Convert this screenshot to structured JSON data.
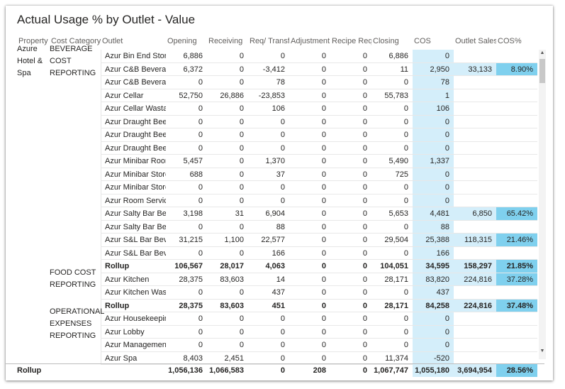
{
  "title": "Actual Usage % by Outlet - Value",
  "headers": [
    "Property",
    "Cost Category",
    "Outlet",
    "Opening",
    "Receiving",
    "Req/ Transf",
    "Adjustment",
    "Recipe Req/",
    "Closing",
    "COS",
    "Outlet Sales",
    "COS%"
  ],
  "property": "Azure Hotel & Spa",
  "groups": [
    {
      "label": "BEVERAGE COST REPORTING"
    },
    {
      "label": "FOOD COST REPORTING"
    },
    {
      "label": "OPERATIONAL EXPENSES REPORTING"
    }
  ],
  "rows": [
    {
      "outlet": "Azur Bin End Store",
      "opening": "6,886",
      "receiving": "0",
      "req": "0",
      "adj": "0",
      "recipe": "0",
      "closing": "6,886",
      "cos": "0",
      "sales": "",
      "pct": ""
    },
    {
      "outlet": "Azur C&B Beverage",
      "opening": "6,372",
      "receiving": "0",
      "req": "-3,412",
      "adj": "0",
      "recipe": "0",
      "closing": "11",
      "cos": "2,950",
      "sales": "33,133",
      "pct": "8.90%"
    },
    {
      "outlet": "Azur C&B Beverage",
      "opening": "0",
      "receiving": "0",
      "req": "78",
      "adj": "0",
      "recipe": "0",
      "closing": "0",
      "cos": "78",
      "sales": "",
      "pct": ""
    },
    {
      "outlet": "Azur Cellar",
      "opening": "52,750",
      "receiving": "26,886",
      "req": "-23,853",
      "adj": "0",
      "recipe": "0",
      "closing": "55,783",
      "cos": "1",
      "sales": "",
      "pct": ""
    },
    {
      "outlet": "Azur Cellar Wastage",
      "opening": "0",
      "receiving": "0",
      "req": "106",
      "adj": "0",
      "recipe": "0",
      "closing": "0",
      "cos": "106",
      "sales": "",
      "pct": ""
    },
    {
      "outlet": "Azur Draught Beer",
      "opening": "0",
      "receiving": "0",
      "req": "0",
      "adj": "0",
      "recipe": "0",
      "closing": "0",
      "cos": "0",
      "sales": "",
      "pct": ""
    },
    {
      "outlet": "Azur Draught Beer",
      "opening": "0",
      "receiving": "0",
      "req": "0",
      "adj": "0",
      "recipe": "0",
      "closing": "0",
      "cos": "0",
      "sales": "",
      "pct": ""
    },
    {
      "outlet": "Azur Draught Beer",
      "opening": "0",
      "receiving": "0",
      "req": "0",
      "adj": "0",
      "recipe": "0",
      "closing": "0",
      "cos": "0",
      "sales": "",
      "pct": ""
    },
    {
      "outlet": "Azur Minibar Room",
      "opening": "5,457",
      "receiving": "0",
      "req": "1,370",
      "adj": "0",
      "recipe": "0",
      "closing": "5,490",
      "cos": "1,337",
      "sales": "",
      "pct": ""
    },
    {
      "outlet": "Azur Minibar Stores",
      "opening": "688",
      "receiving": "0",
      "req": "37",
      "adj": "0",
      "recipe": "0",
      "closing": "725",
      "cos": "0",
      "sales": "",
      "pct": ""
    },
    {
      "outlet": "Azur Minibar Stores",
      "opening": "0",
      "receiving": "0",
      "req": "0",
      "adj": "0",
      "recipe": "0",
      "closing": "0",
      "cos": "0",
      "sales": "",
      "pct": ""
    },
    {
      "outlet": "Azur Room Service",
      "opening": "0",
      "receiving": "0",
      "req": "0",
      "adj": "0",
      "recipe": "0",
      "closing": "0",
      "cos": "0",
      "sales": "",
      "pct": ""
    },
    {
      "outlet": "Azur Salty Bar Beve",
      "opening": "3,198",
      "receiving": "31",
      "req": "6,904",
      "adj": "0",
      "recipe": "0",
      "closing": "5,653",
      "cos": "4,481",
      "sales": "6,850",
      "pct": "65.42%"
    },
    {
      "outlet": "Azur Salty Bar Beve",
      "opening": "0",
      "receiving": "0",
      "req": "88",
      "adj": "0",
      "recipe": "0",
      "closing": "0",
      "cos": "88",
      "sales": "",
      "pct": ""
    },
    {
      "outlet": "Azur S&L Bar Bever",
      "opening": "31,215",
      "receiving": "1,100",
      "req": "22,577",
      "adj": "0",
      "recipe": "0",
      "closing": "29,504",
      "cos": "25,388",
      "sales": "118,315",
      "pct": "21.46%"
    },
    {
      "outlet": "Azur S&L Bar Bever",
      "opening": "0",
      "receiving": "0",
      "req": "166",
      "adj": "0",
      "recipe": "0",
      "closing": "0",
      "cos": "166",
      "sales": "",
      "pct": ""
    },
    {
      "outlet": "Rollup",
      "rollup": true,
      "opening": "106,567",
      "receiving": "28,017",
      "req": "4,063",
      "adj": "0",
      "recipe": "0",
      "closing": "104,051",
      "cos": "34,595",
      "sales": "158,297",
      "pct": "21.85%"
    },
    {
      "outlet": "Azur Kitchen",
      "opening": "28,375",
      "receiving": "83,603",
      "req": "14",
      "adj": "0",
      "recipe": "0",
      "closing": "28,171",
      "cos": "83,820",
      "sales": "224,816",
      "pct": "37.28%"
    },
    {
      "outlet": "Azur Kitchen Wasta",
      "opening": "0",
      "receiving": "0",
      "req": "437",
      "adj": "0",
      "recipe": "0",
      "closing": "0",
      "cos": "437",
      "sales": "",
      "pct": ""
    },
    {
      "outlet": "Rollup",
      "rollup": true,
      "opening": "28,375",
      "receiving": "83,603",
      "req": "451",
      "adj": "0",
      "recipe": "0",
      "closing": "28,171",
      "cos": "84,258",
      "sales": "224,816",
      "pct": "37.48%"
    },
    {
      "outlet": "Azur Housekeeping",
      "opening": "0",
      "receiving": "0",
      "req": "0",
      "adj": "0",
      "recipe": "0",
      "closing": "0",
      "cos": "0",
      "sales": "",
      "pct": ""
    },
    {
      "outlet": "Azur Lobby",
      "opening": "0",
      "receiving": "0",
      "req": "0",
      "adj": "0",
      "recipe": "0",
      "closing": "0",
      "cos": "0",
      "sales": "",
      "pct": ""
    },
    {
      "outlet": "Azur Management",
      "opening": "0",
      "receiving": "0",
      "req": "0",
      "adj": "0",
      "recipe": "0",
      "closing": "0",
      "cos": "0",
      "sales": "",
      "pct": ""
    },
    {
      "outlet": "Azur Spa",
      "opening": "8,403",
      "receiving": "2,451",
      "req": "0",
      "adj": "0",
      "recipe": "0",
      "closing": "11,374",
      "cos": "-520",
      "sales": "",
      "pct": ""
    }
  ],
  "total": {
    "label": "Rollup",
    "opening": "1,056,136",
    "receiving": "1,066,583",
    "req": "0",
    "adj": "208",
    "recipe": "0",
    "closing": "1,067,747",
    "cos": "1,055,180",
    "sales": "3,694,954",
    "pct": "28.56%"
  },
  "colors": {
    "cos_bg": "#d4eefa",
    "sales_bg": "#d4eefa",
    "pct_bg": "#7fd0ee"
  }
}
